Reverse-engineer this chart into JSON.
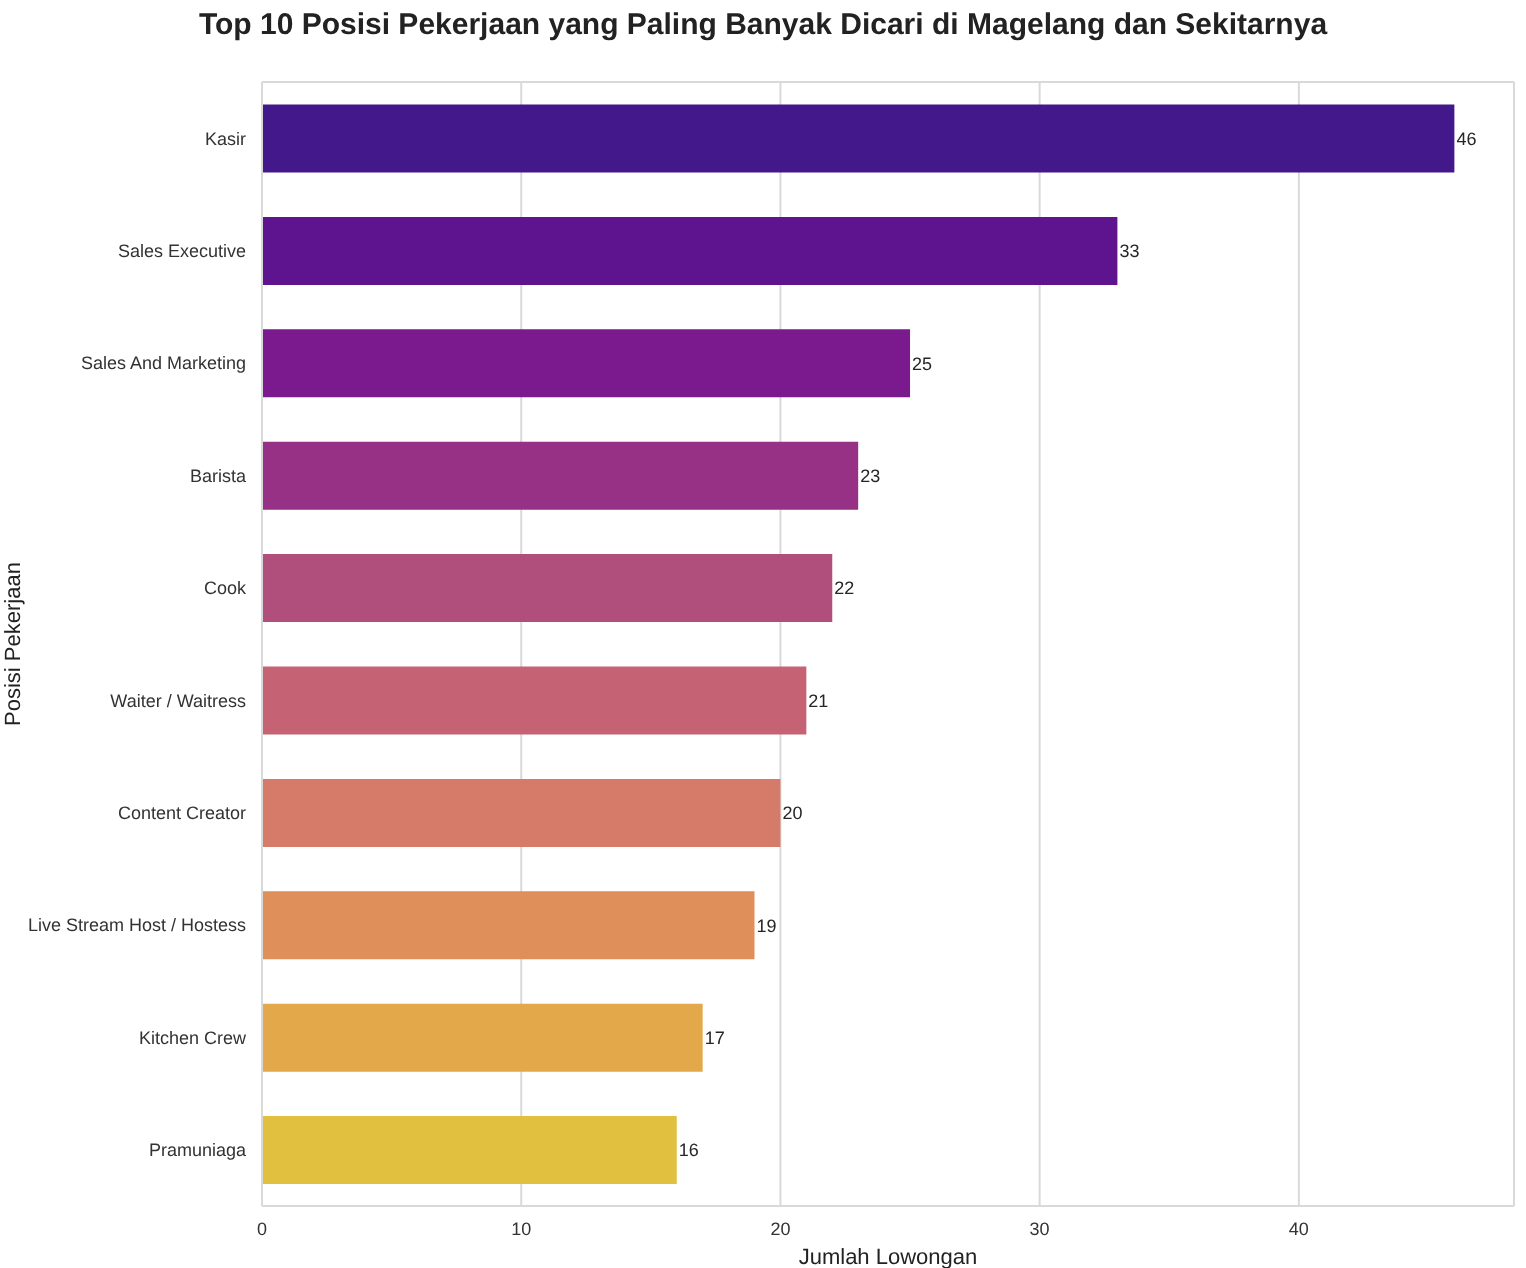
{
  "chart_data": {
    "type": "bar",
    "orientation": "horizontal",
    "title": "Top 10 Posisi Pekerjaan yang Paling Banyak Dicari di Magelang dan Sekitarnya",
    "xlabel": "Jumlah Lowongan",
    "ylabel": "Posisi Pekerjaan",
    "categories": [
      "Kasir",
      "Sales Executive",
      "Sales And Marketing",
      "Barista",
      "Cook",
      "Waiter / Waitress",
      "Content Creator",
      "Live Stream Host / Hostess",
      "Kitchen Crew",
      "Pramuniaga"
    ],
    "values": [
      46,
      33,
      25,
      23,
      22,
      21,
      20,
      19,
      17,
      16
    ],
    "colors": [
      "#42188a",
      "#5e148f",
      "#7a1a8e",
      "#963186",
      "#b04e7c",
      "#c56374",
      "#d67a6a",
      "#df8f5a",
      "#e3a84a",
      "#e0c03e"
    ],
    "xlim": [
      0,
      48.3
    ],
    "xticks": [
      0,
      10,
      20,
      30,
      40
    ],
    "grid": "x",
    "data_labels": true
  }
}
